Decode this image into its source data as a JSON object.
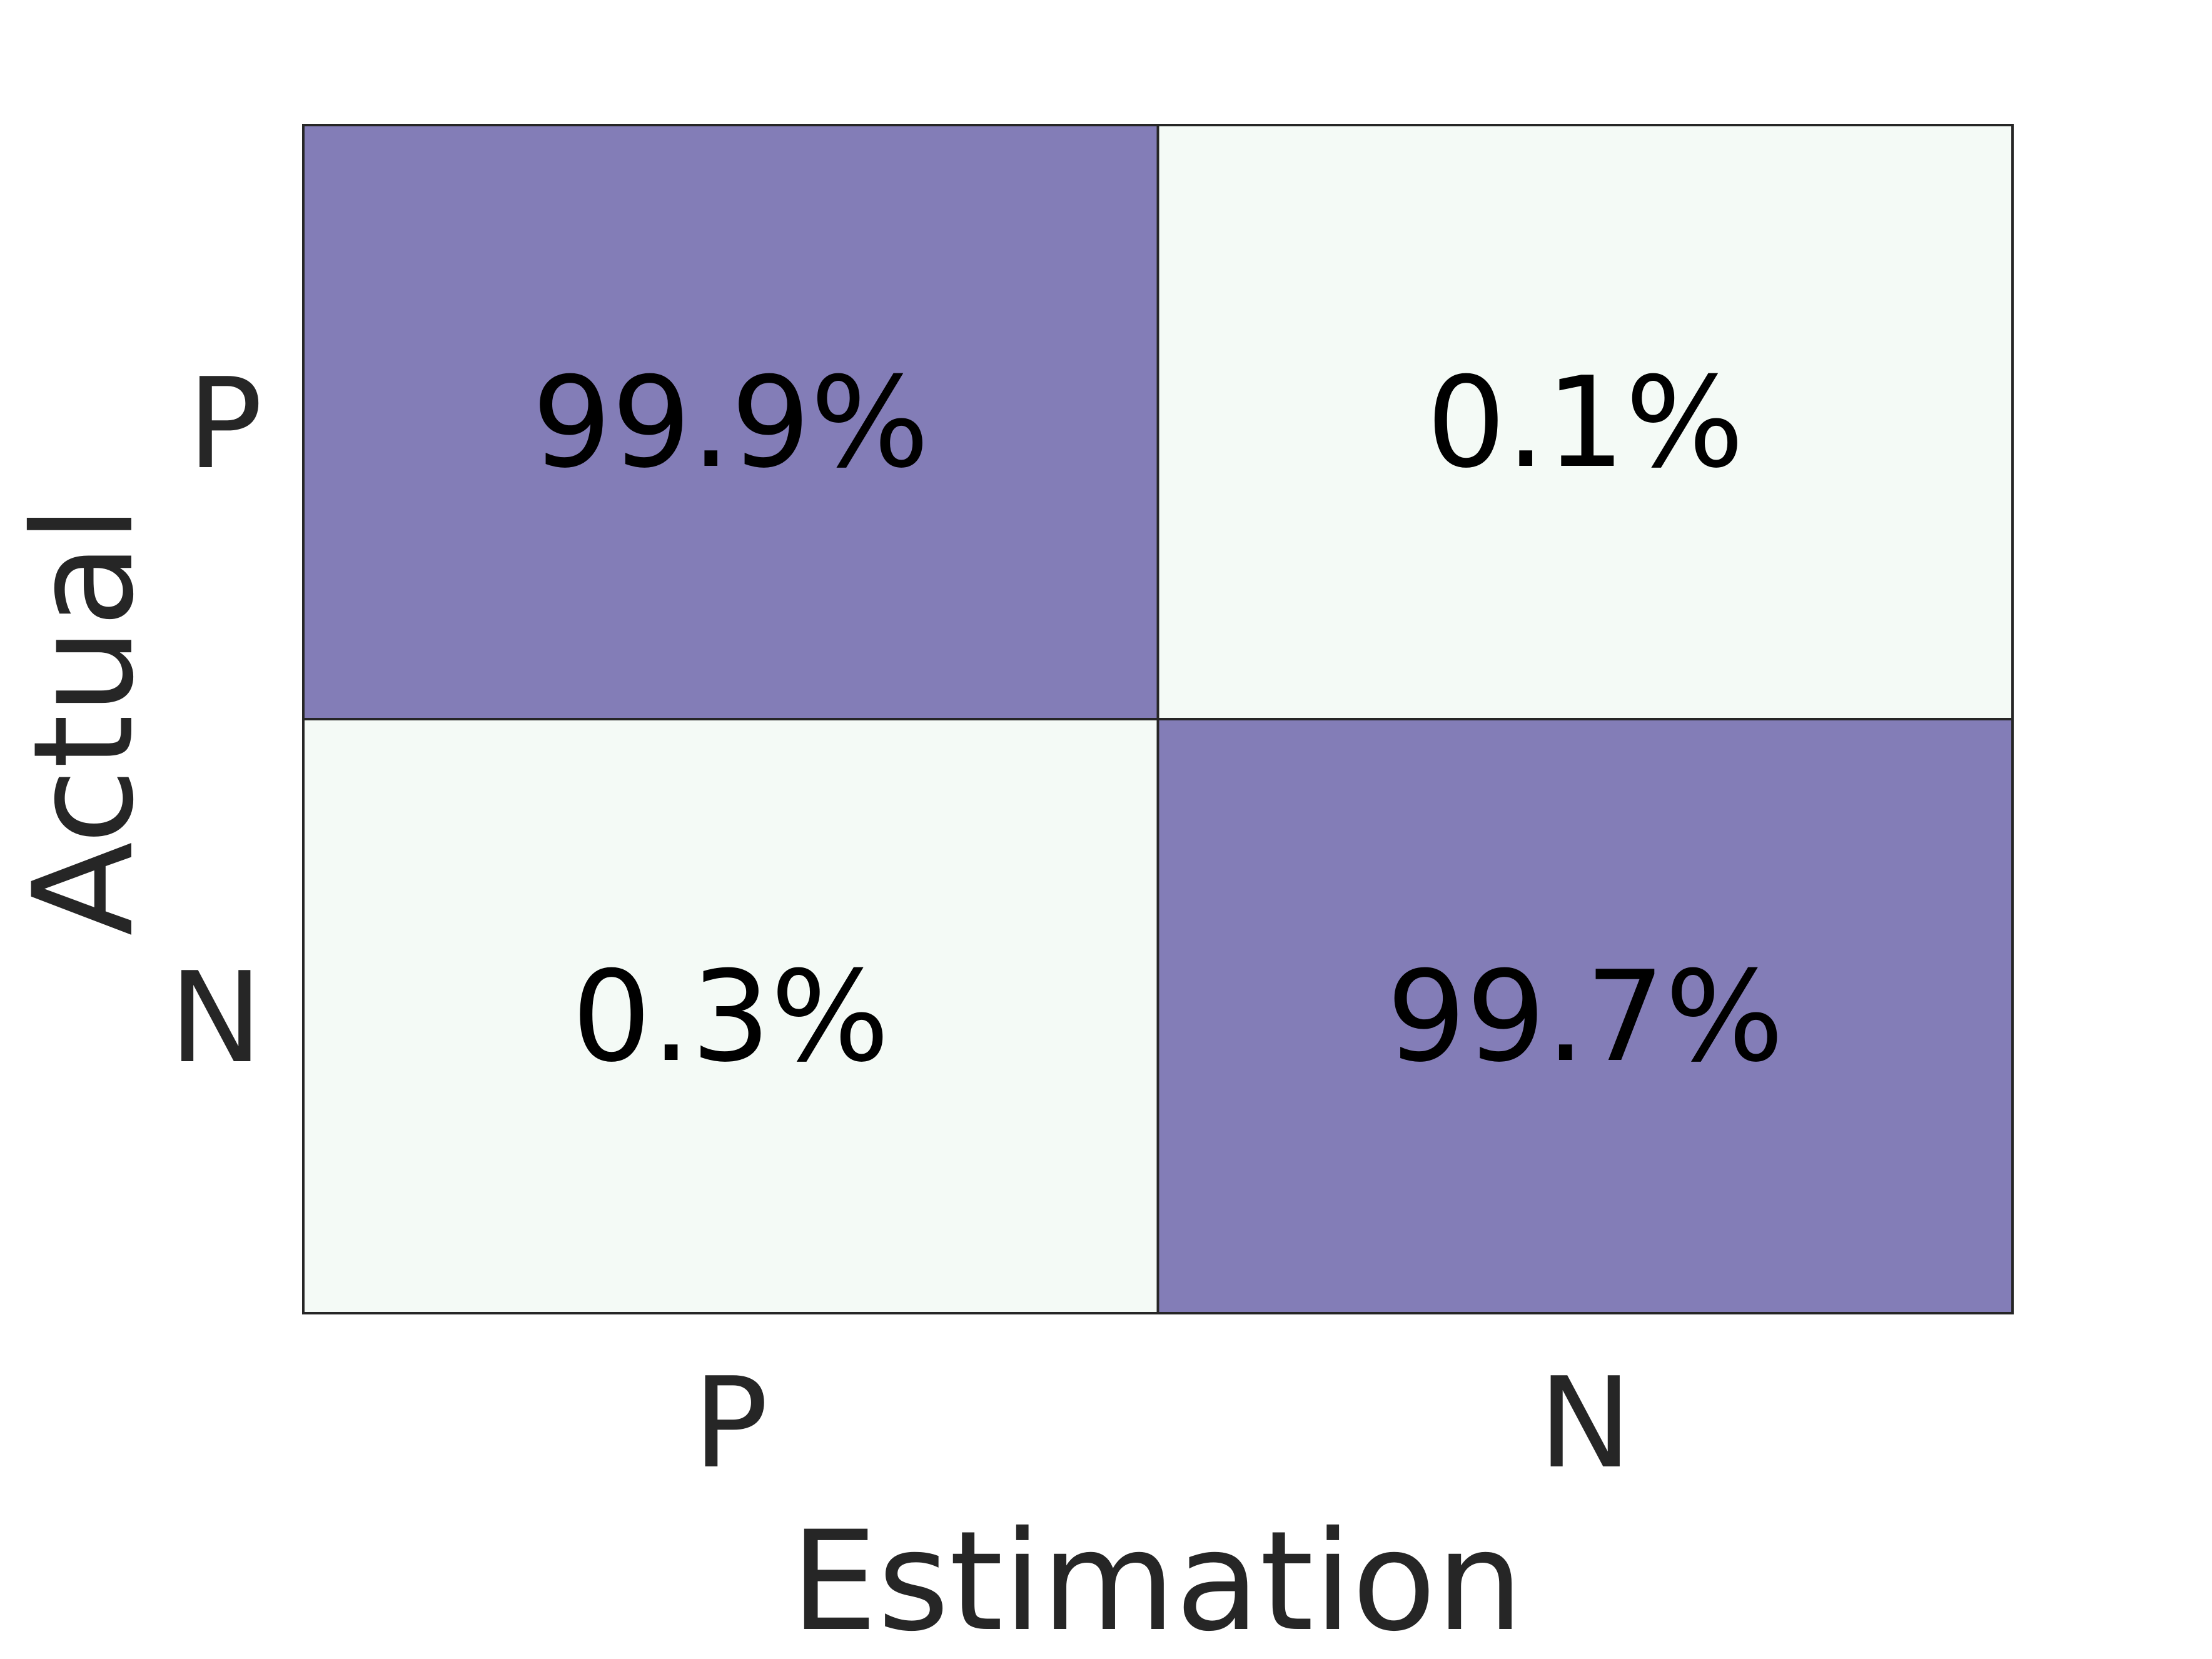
{
  "chart_data": {
    "type": "heatmap",
    "title": "",
    "xlabel": "Estimation",
    "ylabel": "Actual",
    "x_categories": [
      "P",
      "N"
    ],
    "y_categories": [
      "P",
      "N"
    ],
    "values": [
      [
        99.9,
        0.1
      ],
      [
        0.3,
        99.7
      ]
    ],
    "cell_labels": [
      [
        "99.9%",
        "0.1%"
      ],
      [
        "0.3%",
        "99.7%"
      ]
    ],
    "value_range": [
      0,
      100
    ],
    "colors": {
      "low": "#f4faf6",
      "high": "#837db7",
      "border": "#262626"
    },
    "legend": "none",
    "grid": false
  }
}
